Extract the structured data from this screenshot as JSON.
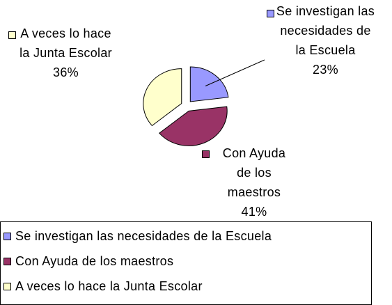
{
  "chart_data": {
    "type": "pie",
    "categories": [
      "Se investigan las necesidades de la Escuela",
      "Con Ayuda de los maestros",
      "A veces lo hace la Junta Escolar"
    ],
    "values": [
      23,
      41,
      36
    ],
    "value_labels": [
      "23%",
      "41%",
      "36%"
    ],
    "colors": [
      "#9999ff",
      "#993366",
      "#ffffcc"
    ],
    "legend": "bottom"
  }
}
